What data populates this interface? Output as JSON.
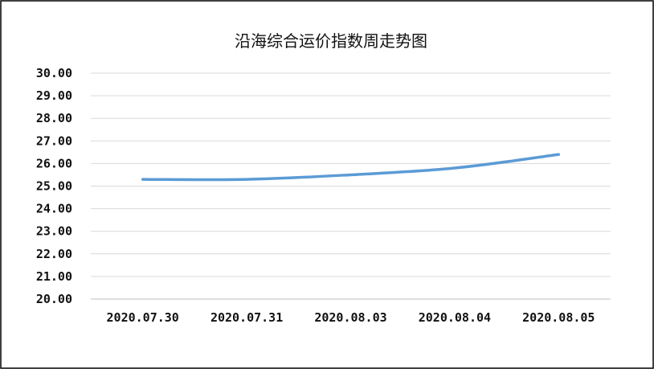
{
  "chart_data": {
    "type": "line",
    "title": "沿海综合运价指数周走势图",
    "xlabel": "",
    "ylabel": "",
    "categories": [
      "2020.07.30",
      "2020.07.31",
      "2020.08.03",
      "2020.08.04",
      "2020.08.05"
    ],
    "series": [
      {
        "values": [
          25.3,
          25.3,
          25.5,
          25.8,
          26.4
        ]
      }
    ],
    "ylim": [
      20,
      30
    ],
    "y_ticks": [
      "20.00",
      "21.00",
      "22.00",
      "23.00",
      "24.00",
      "25.00",
      "26.00",
      "27.00",
      "28.00",
      "29.00",
      "30.00"
    ],
    "grid": true,
    "legend": "none",
    "colors": {
      "line": "#5b9bd5",
      "grid": "#d9d9d9",
      "border": "#000000"
    }
  }
}
